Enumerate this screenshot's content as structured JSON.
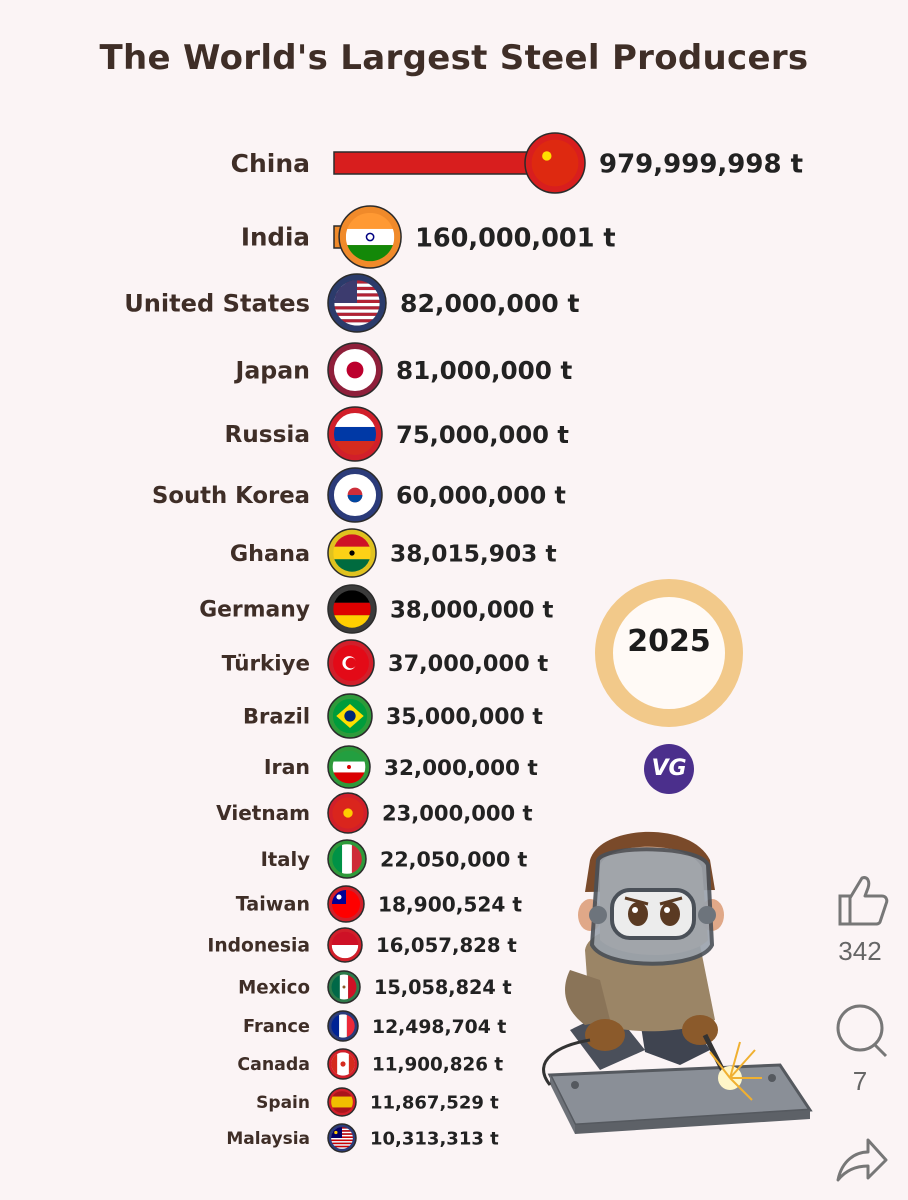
{
  "title": "The World's Largest Steel Producers",
  "year": "2025",
  "watermark_logo": "VG",
  "side_actions": {
    "like_icon": "thumbs-up-icon",
    "like_count": "342",
    "comment_icon": "comment-icon",
    "comment_count": "7",
    "share_icon": "share-icon"
  },
  "colors": {
    "background": "#fbf4f5",
    "title": "#3f2e27",
    "china_bar": "#d81e1e",
    "year_ring": "#f2c98a"
  },
  "chart_data": {
    "type": "bar",
    "orientation": "horizontal",
    "unit": "t",
    "title": "The World's Largest Steel Producers",
    "categories": [
      "China",
      "India",
      "United States",
      "Japan",
      "Russia",
      "South Korea",
      "Ghana",
      "Germany",
      "Türkiye",
      "Brazil",
      "Iran",
      "Vietnam",
      "Italy",
      "Taiwan",
      "Indonesia",
      "Mexico",
      "France",
      "Canada",
      "Spain",
      "Malaysia"
    ],
    "values": [
      979999998,
      160000001,
      82000000,
      81000000,
      75000000,
      60000000,
      38015903,
      38000000,
      37000000,
      35000000,
      32000000,
      23000000,
      22050000,
      18900524,
      16057828,
      15058824,
      12498704,
      11900826,
      11867529,
      10313313
    ],
    "value_labels": [
      "979,999,998 t",
      "160,000,001 t",
      "82,000,000 t",
      "81,000,000 t",
      "75,000,000 t",
      "60,000,000 t",
      "38,015,903 t",
      "38,000,000 t",
      "37,000,000 t",
      "35,000,000 t",
      "32,000,000 t",
      "23,000,000 t",
      "22,050,000 t",
      "18,900,524 t",
      "16,057,828 t",
      "15,058,824 t",
      "12,498,704 t",
      "11,900,826 t",
      "11,867,529 t",
      "10,313,313 t"
    ],
    "flags": [
      "china-flag-icon",
      "india-flag-icon",
      "usa-flag-icon",
      "japan-flag-icon",
      "russia-flag-icon",
      "south-korea-flag-icon",
      "ghana-flag-icon",
      "germany-flag-icon",
      "turkiye-flag-icon",
      "brazil-flag-icon",
      "iran-flag-icon",
      "vietnam-flag-icon",
      "italy-flag-icon",
      "taiwan-flag-icon",
      "indonesia-flag-icon",
      "mexico-flag-icon",
      "france-flag-icon",
      "canada-flag-icon",
      "spain-flag-icon",
      "malaysia-flag-icon"
    ],
    "bar_colors": [
      "#d81e1e",
      "#f08a2a",
      "#2b3b6b",
      "#8f1f3a",
      "#d11f2a",
      "#2b3b7a",
      "#e0c21f",
      "#3a3a3a",
      "#d11f2a",
      "#2e9a3a",
      "#2e9a3a",
      "#d11f2a",
      "#2e9a3a",
      "#d11f2a",
      "#d11f2a",
      "#2e7a4a",
      "#2b3b7a",
      "#d11f2a",
      "#d11f2a",
      "#2b3b7a"
    ]
  }
}
